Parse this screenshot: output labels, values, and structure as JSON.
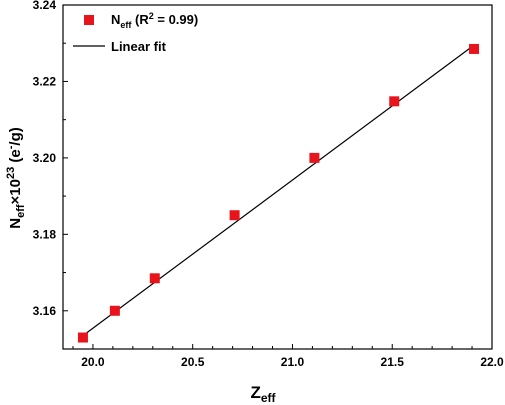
{
  "chart_data": {
    "type": "scatter",
    "xlabel": {
      "main": "Z",
      "sub": "eff"
    },
    "ylabel": {
      "main": "N",
      "sub": "eff",
      "times": "×10",
      "sup": "23",
      "unit_open": " (e",
      "unit_sup": "-",
      "unit_close": "/g)"
    },
    "xlim": [
      19.85,
      22.0
    ],
    "ylim": [
      3.15,
      3.24
    ],
    "xticks": [
      "20.0",
      "20.5",
      "21.0",
      "21.5",
      "22.0"
    ],
    "xtick_values": [
      20.0,
      20.5,
      21.0,
      21.5,
      22.0
    ],
    "yticks": [
      "3.16",
      "3.18",
      "3.20",
      "3.22",
      "3.24"
    ],
    "ytick_values": [
      3.16,
      3.18,
      3.2,
      3.22,
      3.24
    ],
    "series": [
      {
        "name": "N_eff (R^2 = 0.99)",
        "kind": "scatter",
        "color": "#e8141c",
        "marker": "square",
        "x": [
          19.95,
          20.11,
          20.31,
          20.71,
          21.11,
          21.51,
          21.91
        ],
        "y": [
          3.153,
          3.16,
          3.1685,
          3.185,
          3.2,
          3.2148,
          3.2285
        ]
      },
      {
        "name": "Linear fit",
        "kind": "line",
        "color": "#000000",
        "x": [
          19.95,
          21.91
        ],
        "y": [
          3.1535,
          3.2295
        ]
      }
    ],
    "legend": {
      "position": "top-left",
      "entries": [
        {
          "main": "N",
          "sub": "eff",
          "rest_open": " (R",
          "sup": "2",
          "rest_close": " = 0.99)"
        },
        {
          "text": "Linear fit"
        }
      ]
    },
    "grid": false
  }
}
